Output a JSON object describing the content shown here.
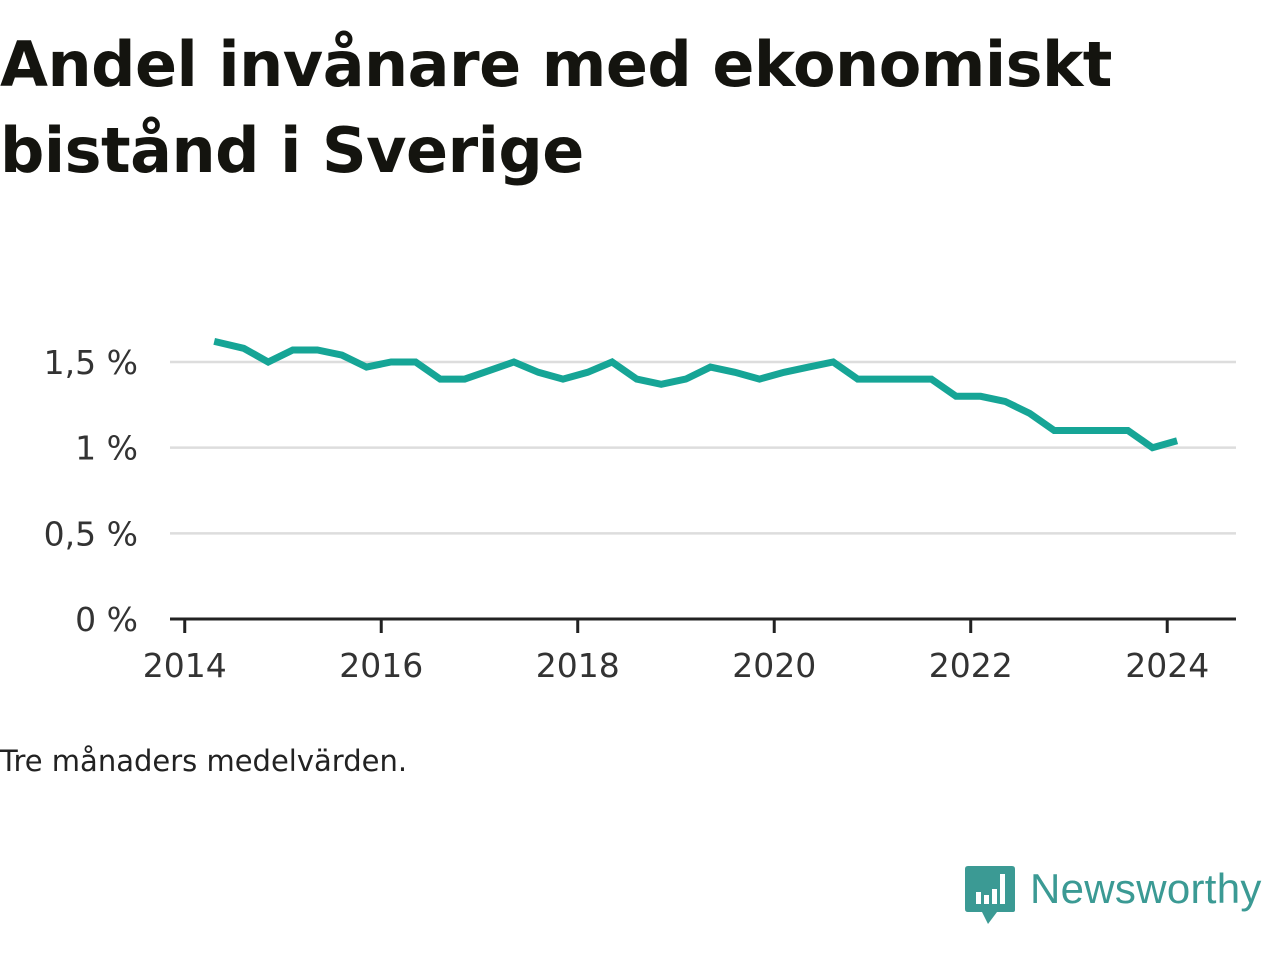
{
  "title": "Andel invånare med ekonomiskt bistånd i Sverige",
  "note": "Tre månaders medelvärden.",
  "brand": {
    "name": "Newsworthy",
    "icon": "newsworthy-logo-icon",
    "color": "#3b9a94"
  },
  "colors": {
    "line": "#16a596",
    "grid": "#dddddd",
    "axis": "#222222"
  },
  "chart_data": {
    "type": "line",
    "xlabel": "",
    "ylabel": "",
    "grid": true,
    "xlim": [
      2013.85,
      2024.7
    ],
    "ylim": [
      0,
      1.5
    ],
    "x_ticks": [
      2014,
      2016,
      2018,
      2020,
      2022,
      2024
    ],
    "x_tick_labels": [
      "2014",
      "2016",
      "2018",
      "2020",
      "2022",
      "2024"
    ],
    "y_ticks": [
      0,
      0.5,
      1,
      1.5
    ],
    "y_tick_labels": [
      "0 %",
      "0,5 %",
      "1 %",
      "1,5 %"
    ],
    "series": [
      {
        "x": [
          2014.3,
          2014.6,
          2014.85,
          2015.1,
          2015.35,
          2015.6,
          2015.85,
          2016.1,
          2016.35,
          2016.6,
          2016.85,
          2017.1,
          2017.35,
          2017.6,
          2017.85,
          2018.1,
          2018.35,
          2018.6,
          2018.85,
          2019.1,
          2019.35,
          2019.6,
          2019.85,
          2020.1,
          2020.35,
          2020.6,
          2020.85,
          2021.1,
          2021.35,
          2021.6,
          2021.85,
          2022.1,
          2022.35,
          2022.6,
          2022.85,
          2023.1,
          2023.35,
          2023.6,
          2023.85,
          2024.1
        ],
        "values": [
          1.62,
          1.58,
          1.5,
          1.57,
          1.57,
          1.54,
          1.47,
          1.5,
          1.5,
          1.4,
          1.4,
          1.45,
          1.5,
          1.44,
          1.4,
          1.44,
          1.5,
          1.4,
          1.37,
          1.4,
          1.47,
          1.44,
          1.4,
          1.44,
          1.47,
          1.5,
          1.4,
          1.4,
          1.4,
          1.4,
          1.3,
          1.3,
          1.27,
          1.2,
          1.1,
          1.1,
          1.1,
          1.1,
          1.0,
          1.04
        ]
      }
    ]
  }
}
